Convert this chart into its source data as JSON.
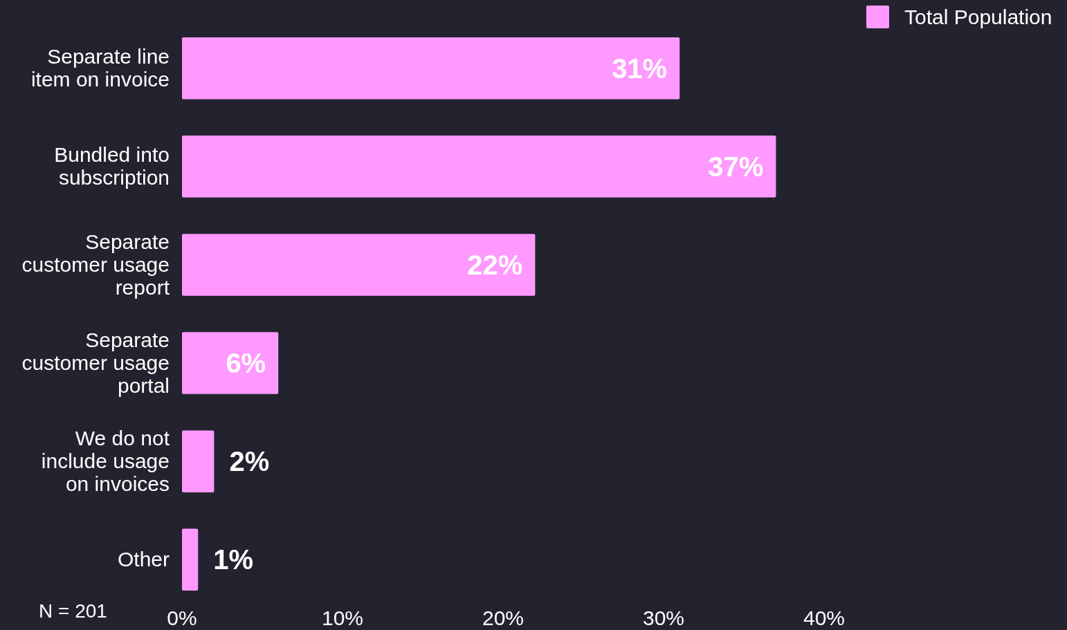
{
  "chart_data": {
    "type": "bar",
    "orientation": "horizontal",
    "categories": [
      "Separate line item on invoice",
      "Bundled into subscription",
      "Separate customer usage report",
      "Separate customer usage portal",
      "We do not include usage on invoices",
      "Other"
    ],
    "series": [
      {
        "name": "Total Population",
        "color": "#ff99ff",
        "values": [
          31,
          37,
          22,
          6,
          2,
          1
        ]
      }
    ],
    "xlim": [
      0,
      40
    ],
    "xticks": [
      {
        "value": 0,
        "label": "0%"
      },
      {
        "value": 10,
        "label": "10%"
      },
      {
        "value": 20,
        "label": "20%"
      },
      {
        "value": 30,
        "label": "30%"
      },
      {
        "value": 40,
        "label": "40%"
      }
    ],
    "value_labels": [
      "31%",
      "37%",
      "22%",
      "6%",
      "2%",
      "1%"
    ],
    "legend": "top right",
    "grid": false,
    "annotations": [
      "N = 201"
    ]
  }
}
